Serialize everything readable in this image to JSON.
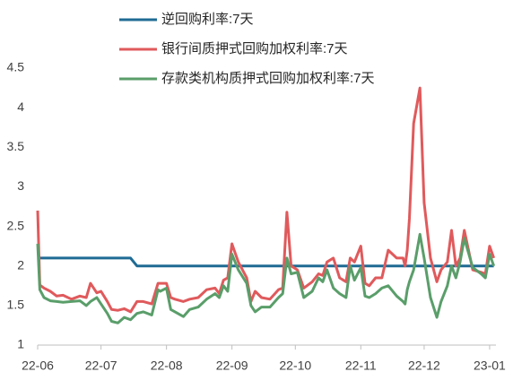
{
  "chart_data": {
    "type": "line",
    "x": [
      0,
      1,
      3,
      6,
      9,
      12,
      16,
      20,
      23,
      25,
      28,
      30,
      33,
      35,
      38,
      41,
      44,
      47,
      50,
      54,
      57,
      58,
      61,
      63,
      65,
      69,
      72,
      76,
      80,
      84,
      86,
      88,
      90,
      92,
      95,
      99,
      101,
      103,
      106,
      110,
      114,
      116,
      118,
      120,
      123,
      126,
      130,
      133,
      135,
      137,
      140,
      143,
      146,
      148,
      150,
      153,
      155,
      157,
      160,
      163,
      166,
      170,
      173,
      174,
      175,
      176,
      178,
      181,
      183,
      186,
      189,
      191,
      194,
      196,
      198,
      200,
      202,
      206,
      210,
      212,
      214,
      216
    ],
    "series": [
      {
        "name": "逆回购利率:7天",
        "color": "#1f6b94",
        "values": [
          2.1,
          2.1,
          2.1,
          2.1,
          2.1,
          2.1,
          2.1,
          2.1,
          2.1,
          2.1,
          2.1,
          2.1,
          2.1,
          2.1,
          2.1,
          2.1,
          2.1,
          2,
          2,
          2,
          2,
          2,
          2,
          2,
          2,
          2,
          2,
          2,
          2,
          2,
          2,
          2,
          2,
          2,
          2,
          2,
          2,
          2,
          2,
          2,
          2,
          2,
          2,
          2,
          2,
          2,
          2,
          2,
          2,
          2,
          2,
          2,
          2,
          2,
          2,
          2,
          2,
          2,
          2,
          2,
          2,
          2,
          2,
          2,
          2,
          2,
          2,
          2,
          2,
          2,
          2,
          2,
          2,
          2,
          2,
          2,
          2,
          2,
          2,
          2,
          2,
          2
        ]
      },
      {
        "name": "银行间质押式回购加权利率:7天",
        "color": "#e05a5c",
        "values": [
          2.7,
          1.76,
          1.72,
          1.68,
          1.62,
          1.63,
          1.58,
          1.62,
          1.6,
          1.78,
          1.66,
          1.68,
          1.55,
          1.45,
          1.44,
          1.46,
          1.42,
          1.55,
          1.55,
          1.52,
          1.78,
          1.78,
          1.78,
          1.6,
          1.58,
          1.55,
          1.58,
          1.6,
          1.7,
          1.72,
          1.65,
          1.82,
          1.85,
          2.28,
          2.05,
          1.85,
          1.55,
          1.68,
          1.6,
          1.58,
          1.7,
          1.72,
          2.68,
          2.0,
          1.95,
          1.72,
          1.8,
          1.9,
          1.88,
          2.05,
          2.1,
          1.85,
          1.8,
          2.1,
          2.05,
          2.25,
          1.78,
          1.75,
          1.85,
          1.85,
          2.2,
          2.1,
          2.1,
          2.0,
          2.2,
          2.6,
          3.8,
          4.25,
          2.8,
          2.1,
          1.8,
          1.95,
          2.05,
          2.45,
          2.0,
          2.1,
          2.45,
          1.95,
          1.92,
          1.9,
          2.25,
          2.1
        ]
      },
      {
        "name": "存款类机构质押式回购加权利率:7天",
        "color": "#5a9e6a",
        "values": [
          2.28,
          1.7,
          1.6,
          1.56,
          1.55,
          1.54,
          1.55,
          1.56,
          1.5,
          1.55,
          1.6,
          1.52,
          1.4,
          1.3,
          1.28,
          1.35,
          1.32,
          1.4,
          1.42,
          1.38,
          1.7,
          1.68,
          1.72,
          1.45,
          1.42,
          1.36,
          1.45,
          1.48,
          1.58,
          1.65,
          1.6,
          1.75,
          1.68,
          2.15,
          1.95,
          1.78,
          1.5,
          1.42,
          1.48,
          1.48,
          1.6,
          1.65,
          2.1,
          1.9,
          1.92,
          1.6,
          1.68,
          1.85,
          1.8,
          1.95,
          1.72,
          1.65,
          1.6,
          2.0,
          1.82,
          1.98,
          1.62,
          1.6,
          1.65,
          1.72,
          1.75,
          1.62,
          1.55,
          1.52,
          1.7,
          1.8,
          1.95,
          2.4,
          2.1,
          1.6,
          1.35,
          1.55,
          1.75,
          2.0,
          1.85,
          2.05,
          2.35,
          1.98,
          1.9,
          1.85,
          2.15,
          2.0
        ]
      }
    ],
    "xlim": [
      0,
      217
    ],
    "xticks": [
      {
        "value": 0,
        "label": "22-06"
      },
      {
        "value": 30,
        "label": "22-07"
      },
      {
        "value": 61,
        "label": "22-08"
      },
      {
        "value": 92,
        "label": "22-09"
      },
      {
        "value": 122,
        "label": "22-10"
      },
      {
        "value": 153,
        "label": "22-11"
      },
      {
        "value": 183,
        "label": "22-12"
      },
      {
        "value": 214,
        "label": "23-01"
      }
    ],
    "ylim": [
      1,
      4.5
    ],
    "yticks": [
      1,
      1.5,
      2,
      2.5,
      3,
      3.5,
      4,
      4.5
    ],
    "grid": false,
    "legend": "top"
  }
}
